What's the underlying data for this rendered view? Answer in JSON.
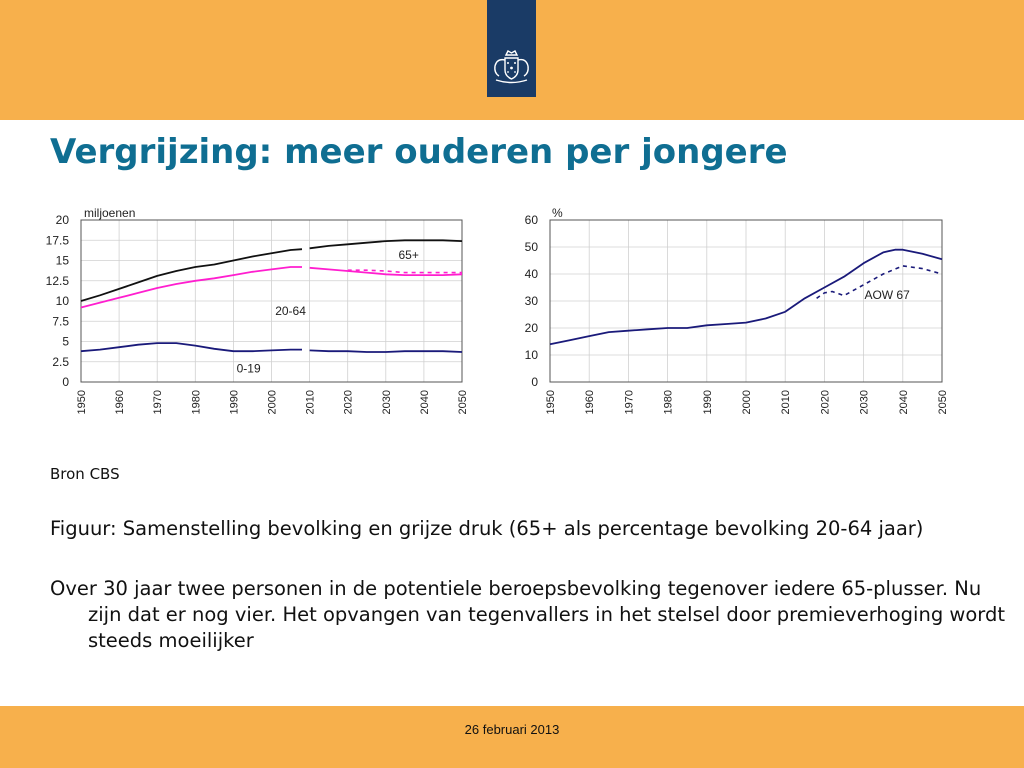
{
  "colors": {
    "band": "#f7b04c",
    "title": "#0f6e92",
    "logo_box": "#1a3b66",
    "series_black": "#111111",
    "series_magenta": "#ff1ecf",
    "series_navy": "#1a1a7a"
  },
  "header": {
    "logo_icon": "coat-of-arms-icon"
  },
  "title": "Vergrijzing: meer ouderen per jongere",
  "chart_data": [
    {
      "type": "line",
      "unit_label": "miljoenen",
      "x_ticks": [
        "1950",
        "1960",
        "1970",
        "1980",
        "1990",
        "2000",
        "2010",
        "2020",
        "2030",
        "2040",
        "2050"
      ],
      "y_ticks": [
        "0",
        "2.5",
        "5",
        "7.5",
        "10",
        "12.5",
        "15",
        "17.5",
        "20"
      ],
      "xlim": [
        1950,
        2050
      ],
      "ylim": [
        0,
        20
      ],
      "grid": true,
      "annotations": [
        {
          "text": "65+",
          "x": 2036,
          "y": 15.2
        },
        {
          "text": "20-64",
          "x": 2005,
          "y": 8.3
        },
        {
          "text": "0-19",
          "x": 1994,
          "y": 1.2
        }
      ],
      "series": [
        {
          "key": "total",
          "color": "#111111",
          "dashed": false,
          "x": [
            1950,
            1955,
            1960,
            1965,
            1970,
            1975,
            1980,
            1985,
            1990,
            1995,
            2000,
            2005,
            2008
          ],
          "y": [
            10.0,
            10.7,
            11.5,
            12.3,
            13.1,
            13.7,
            14.2,
            14.5,
            15.0,
            15.5,
            15.9,
            16.3,
            16.4
          ]
        },
        {
          "key": "total_projection",
          "color": "#111111",
          "dashed": false,
          "x": [
            2010,
            2015,
            2020,
            2025,
            2030,
            2035,
            2040,
            2045,
            2050
          ],
          "y": [
            16.5,
            16.8,
            17.0,
            17.2,
            17.4,
            17.5,
            17.5,
            17.5,
            17.4
          ]
        },
        {
          "key": "age_20_64_history",
          "color": "#ff1ecf",
          "dashed": false,
          "x": [
            1950,
            1955,
            1960,
            1965,
            1970,
            1975,
            1980,
            1985,
            1990,
            1995,
            2000,
            2005,
            2008
          ],
          "y": [
            9.2,
            9.8,
            10.4,
            11.0,
            11.6,
            12.1,
            12.5,
            12.8,
            13.2,
            13.6,
            13.9,
            14.2,
            14.2
          ]
        },
        {
          "key": "age_20_64_projection",
          "color": "#ff1ecf",
          "dashed": false,
          "x": [
            2010,
            2015,
            2020,
            2025,
            2030,
            2035,
            2040,
            2045,
            2050
          ],
          "y": [
            14.1,
            13.9,
            13.7,
            13.5,
            13.3,
            13.2,
            13.2,
            13.2,
            13.3
          ]
        },
        {
          "key": "age_20_64_aow67",
          "color": "#ff1ecf",
          "dashed": true,
          "x": [
            2020,
            2025,
            2030,
            2035,
            2040,
            2045,
            2050
          ],
          "y": [
            13.8,
            13.8,
            13.7,
            13.5,
            13.5,
            13.5,
            13.5
          ]
        },
        {
          "key": "age_0_19_history",
          "color": "#1a1a7a",
          "dashed": false,
          "x": [
            1950,
            1955,
            1960,
            1965,
            1970,
            1975,
            1980,
            1985,
            1990,
            1995,
            2000,
            2005,
            2008
          ],
          "y": [
            3.8,
            4.0,
            4.3,
            4.6,
            4.8,
            4.8,
            4.5,
            4.1,
            3.8,
            3.8,
            3.9,
            4.0,
            4.0
          ]
        },
        {
          "key": "age_0_19_projection",
          "color": "#1a1a7a",
          "dashed": false,
          "x": [
            2010,
            2015,
            2020,
            2025,
            2030,
            2035,
            2040,
            2045,
            2050
          ],
          "y": [
            3.9,
            3.8,
            3.8,
            3.7,
            3.7,
            3.8,
            3.8,
            3.8,
            3.7
          ]
        }
      ]
    },
    {
      "type": "line",
      "unit_label": "%",
      "x_ticks": [
        "1950",
        "1960",
        "1970",
        "1980",
        "1990",
        "2000",
        "2010",
        "2020",
        "2030",
        "2040",
        "2050"
      ],
      "y_ticks": [
        "0",
        "10",
        "20",
        "30",
        "40",
        "50",
        "60"
      ],
      "xlim": [
        1950,
        2050
      ],
      "ylim": [
        0,
        60
      ],
      "grid": true,
      "annotations": [
        {
          "text": "AOW 67",
          "x": 2036,
          "y": 30.8
        }
      ],
      "series": [
        {
          "key": "grey_pressure",
          "color": "#1a1a7a",
          "dashed": false,
          "x": [
            1950,
            1955,
            1960,
            1965,
            1970,
            1975,
            1980,
            1985,
            1990,
            1995,
            2000,
            2005,
            2010,
            2012,
            2015,
            2020,
            2025,
            2030,
            2035,
            2038,
            2040,
            2045,
            2050
          ],
          "y": [
            14,
            15.5,
            17,
            18.5,
            19,
            19.5,
            20,
            20,
            21,
            21.5,
            22,
            23.5,
            26,
            28,
            31,
            35,
            39,
            44,
            48,
            49,
            49,
            47.5,
            45.5
          ]
        },
        {
          "key": "grey_pressure_aow67",
          "color": "#1a1a7a",
          "dashed": true,
          "x": [
            2018,
            2020,
            2022,
            2025,
            2030,
            2035,
            2040,
            2045,
            2050
          ],
          "y": [
            31,
            33,
            33.5,
            32,
            36,
            40,
            43,
            42,
            40
          ]
        }
      ]
    }
  ],
  "source": "Bron CBS",
  "paragraphs": [
    "Figuur: Samenstelling bevolking en grijze druk (65+ als percentage bevolking 20-64 jaar)",
    "Over 30 jaar twee personen in de potentiele beroepsbevolking tegenover iedere 65-plusser. Nu zijn dat er nog vier. Het opvangen van tegenvallers in het stelsel door premieverhoging wordt steeds moeilijker"
  ],
  "footer": {
    "date": "26 februari 2013"
  }
}
